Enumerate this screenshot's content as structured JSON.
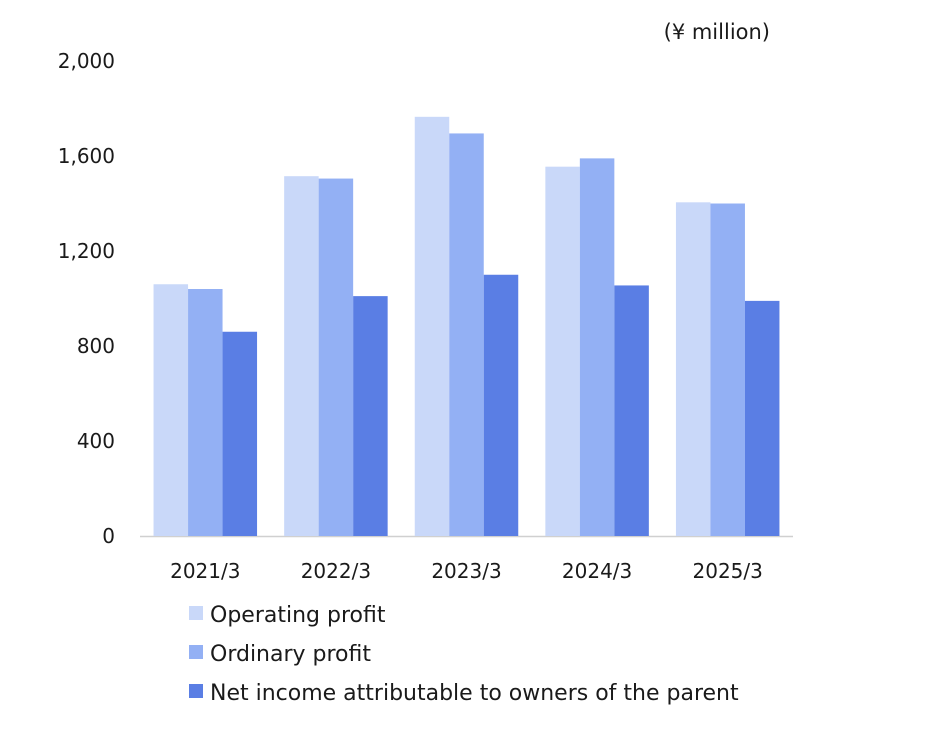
{
  "chart_data": {
    "type": "bar",
    "title": "",
    "unit_label": "(¥ million)",
    "xlabel": "",
    "ylabel": "",
    "categories": [
      "2021/3",
      "2022/3",
      "2023/3",
      "2024/3",
      "2025/3"
    ],
    "ylim": [
      0,
      2000
    ],
    "yticks": [
      0,
      400,
      800,
      1200,
      1600,
      2000
    ],
    "ytick_labels": [
      "0",
      "400",
      "800",
      "1,200",
      "1,600",
      "2,000"
    ],
    "grid": false,
    "legend_position": "bottom",
    "series": [
      {
        "name": "Operating profit",
        "color": "#c9d8f9",
        "values": [
          1060,
          1515,
          1765,
          1555,
          1405
        ]
      },
      {
        "name": "Ordinary profit",
        "color": "#93b0f4",
        "values": [
          1040,
          1505,
          1695,
          1590,
          1400
        ]
      },
      {
        "name": "Net income attributable to owners of the parent",
        "color": "#5a7ee4",
        "values": [
          860,
          1010,
          1100,
          1055,
          990
        ]
      }
    ]
  }
}
